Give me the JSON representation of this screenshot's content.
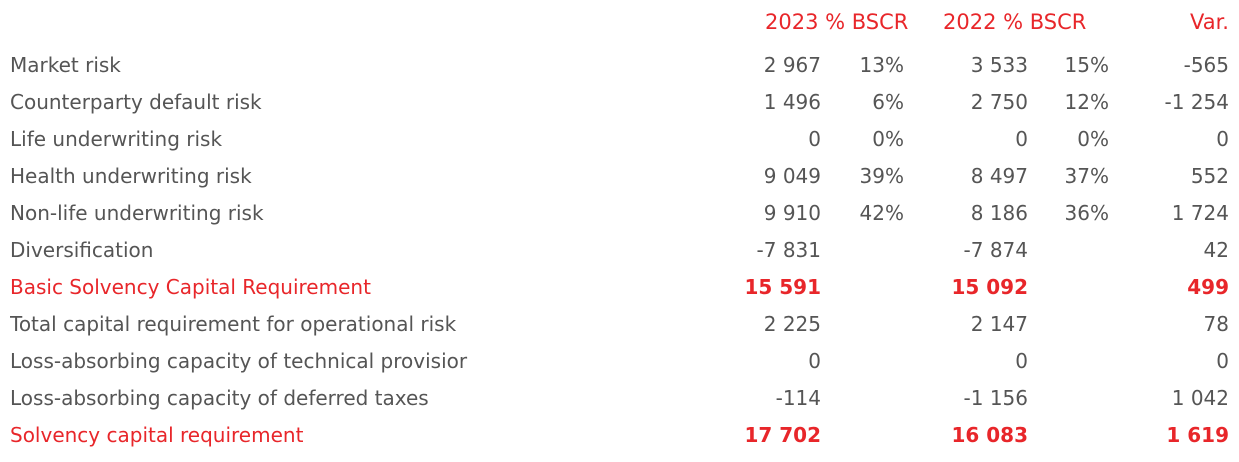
{
  "header": {
    "col_2023": "2023 % BSCR",
    "col_2022": "2022 % BSCR",
    "col_var": "Var."
  },
  "rows": [
    {
      "label": "Market risk",
      "v2023": "2 967",
      "p2023": "13%",
      "v2022": "3 533",
      "p2022": "15%",
      "var": "-565"
    },
    {
      "label": "Counterparty default risk",
      "v2023": "1 496",
      "p2023": "6%",
      "v2022": "2 750",
      "p2022": "12%",
      "var": "-1 254"
    },
    {
      "label": "Life underwriting risk",
      "v2023": "0",
      "p2023": "0%",
      "v2022": "0",
      "p2022": "0%",
      "var": "0"
    },
    {
      "label": "Health underwriting risk",
      "v2023": "9 049",
      "p2023": "39%",
      "v2022": "8 497",
      "p2022": "37%",
      "var": "552"
    },
    {
      "label": "Non-life underwriting risk",
      "v2023": "9 910",
      "p2023": "42%",
      "v2022": "8 186",
      "p2022": "36%",
      "var": "1 724"
    },
    {
      "label": "Diversification",
      "v2023": "-7 831",
      "p2023": "",
      "v2022": "-7 874",
      "p2022": "",
      "var": "42"
    },
    {
      "label": "Basic Solvency Capital Requirement",
      "v2023": "15 591",
      "p2023": "",
      "v2022": "15 092",
      "p2022": "",
      "var": "499"
    },
    {
      "label": "Total capital requirement for operational risk",
      "v2023": "2 225",
      "p2023": "",
      "v2022": "2 147",
      "p2022": "",
      "var": "78"
    },
    {
      "label": "Loss-absorbing capacity of technical provisior",
      "v2023": "0",
      "p2023": "",
      "v2022": "0",
      "p2022": "",
      "var": "0"
    },
    {
      "label": "Loss-absorbing capacity of deferred taxes",
      "v2023": "-114",
      "p2023": "",
      "v2022": "-1 156",
      "p2022": "",
      "var": "1 042"
    },
    {
      "label": "Solvency capital requirement",
      "v2023": "17 702",
      "p2023": "",
      "v2022": "16 083",
      "p2022": "",
      "var": "1 619"
    }
  ],
  "colors": {
    "highlight": "#e8262a",
    "text": "#555555"
  }
}
